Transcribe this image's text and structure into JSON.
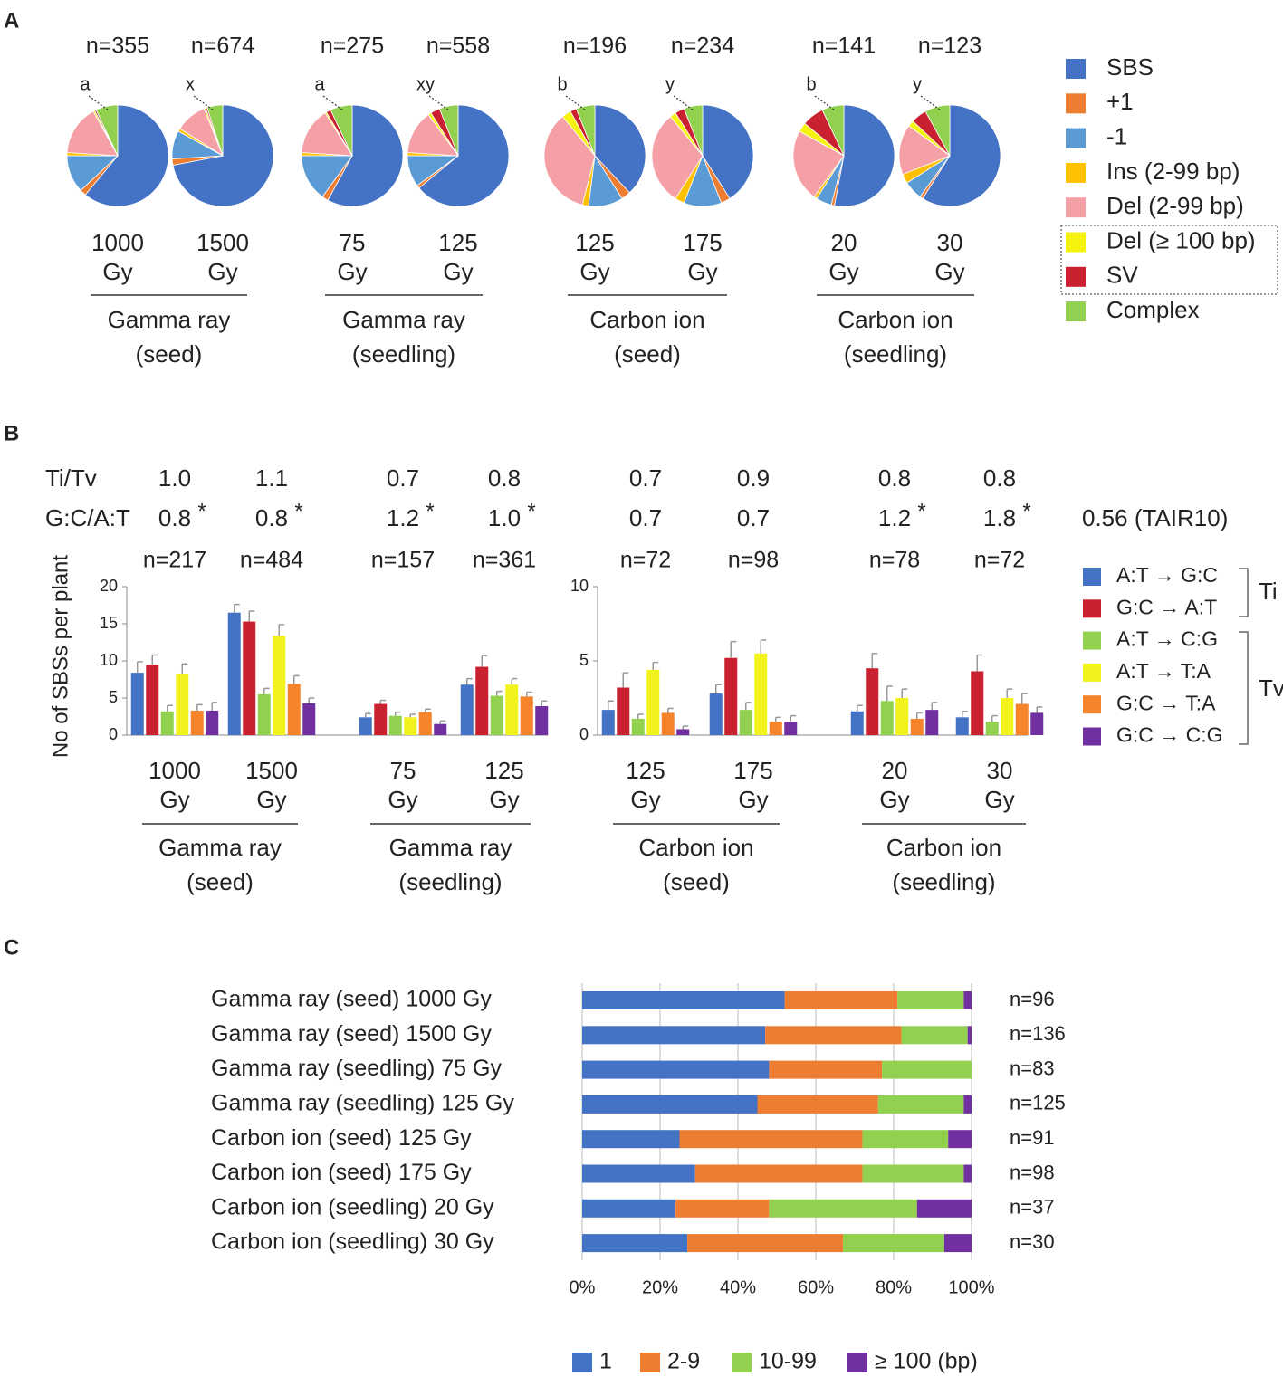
{
  "panels": [
    "A",
    "B",
    "C"
  ],
  "chart_data": [
    {
      "type": "pie",
      "categories": [
        "SBS",
        "+1",
        "-1",
        "Ins (2-99 bp)",
        "Del (2-99 bp)",
        "Del (≥ 100 bp)",
        "SV",
        "Complex"
      ],
      "colors": [
        "#4472c4",
        "#ed7d31",
        "#5b9bd5",
        "#ffc000",
        "#f4a0a6",
        "#f5f20f",
        "#c9212f",
        "#92d050"
      ],
      "pies": [
        {
          "n": "n=355",
          "annotation": "a",
          "label": "1000 Gy",
          "values": [
            61,
            2,
            12,
            1,
            16,
            0.5,
            0.5,
            7
          ]
        },
        {
          "n": "n=674",
          "annotation": "x",
          "label": "1500 Gy",
          "values": [
            72,
            2,
            9,
            1,
            10,
            0.5,
            0.5,
            5
          ]
        },
        {
          "n": "n=275",
          "annotation": "a",
          "label": "75 Gy",
          "values": [
            58,
            2,
            15,
            1,
            15,
            0.5,
            1.5,
            7
          ]
        },
        {
          "n": "n=558",
          "annotation": "xy",
          "label": "125 Gy",
          "values": [
            64,
            1,
            10,
            1,
            14,
            1,
            3,
            6
          ]
        },
        {
          "n": "n=196",
          "annotation": "b",
          "label": "125 Gy",
          "values": [
            38,
            3,
            11,
            2,
            35,
            3,
            2,
            6
          ]
        },
        {
          "n": "n=234",
          "annotation": "y",
          "label": "175 Gy",
          "values": [
            41,
            3,
            12,
            3,
            30,
            2,
            3,
            6
          ]
        },
        {
          "n": "n=141",
          "annotation": "b",
          "label": "20 Gy",
          "values": [
            53,
            1,
            5,
            1,
            23,
            3,
            7,
            7
          ]
        },
        {
          "n": "n=123",
          "annotation": "y",
          "label": "30 Gy",
          "values": [
            59,
            1,
            6,
            3,
            16,
            2,
            5,
            8
          ]
        }
      ],
      "groups": [
        "Gamma ray (seed)",
        "Gamma ray (seedling)",
        "Carbon ion (seed)",
        "Carbon ion (seedling)"
      ]
    },
    {
      "type": "bar",
      "ylabel": "No of SBSs per plant",
      "row_labels": [
        "Ti/Tv",
        "G:C/A:T"
      ],
      "reference": "0.56 (TAIR10)",
      "legend_groups": [
        "Ti",
        "Tv"
      ],
      "categories": [
        "1000 Gy",
        "1500 Gy",
        "75 Gy",
        "125 Gy"
      ],
      "groups": [
        "Gamma ray (seed)",
        "Gamma ray (seedling)"
      ],
      "n": [
        "n=217",
        "n=484",
        "n=157",
        "n=361"
      ],
      "ti_tv": [
        "1.0",
        "1.1",
        "0.7",
        "0.8"
      ],
      "gc_at": [
        "0.8",
        "0.8",
        "1.2",
        "1.0"
      ],
      "gc_at_marks": [
        "*",
        "*",
        "*",
        "*"
      ],
      "ylim": [
        0,
        20
      ],
      "yticks": [
        0,
        5,
        10,
        15,
        20
      ],
      "series": [
        {
          "name": "A:T → G:C",
          "color": "#4472c4",
          "values": [
            8.4,
            16.5,
            2.4,
            6.8
          ],
          "errors": [
            1.5,
            1.1,
            0.5,
            0.8
          ]
        },
        {
          "name": "G:C → A:T",
          "color": "#c9212f",
          "values": [
            9.5,
            15.3,
            4.2,
            9.2
          ],
          "errors": [
            1.3,
            1.4,
            0.5,
            1.5
          ]
        },
        {
          "name": "A:T → C:G",
          "color": "#92d050",
          "values": [
            3.2,
            5.5,
            2.6,
            5.3
          ],
          "errors": [
            0.8,
            0.8,
            0.5,
            0.6
          ]
        },
        {
          "name": "A:T → T:A",
          "color": "#f2f21c",
          "values": [
            8.3,
            13.4,
            2.4,
            6.8
          ],
          "errors": [
            1.3,
            1.5,
            0.4,
            0.8
          ]
        },
        {
          "name": "G:C → T:A",
          "color": "#f5842b",
          "values": [
            3.3,
            6.9,
            3.1,
            5.2
          ],
          "errors": [
            0.8,
            1.1,
            0.4,
            0.6
          ]
        },
        {
          "name": "G:C → C:G",
          "color": "#7030a0",
          "values": [
            3.3,
            4.3,
            1.5,
            3.9
          ],
          "errors": [
            1.1,
            0.7,
            0.4,
            0.7
          ]
        }
      ]
    },
    {
      "type": "bar",
      "categories": [
        "125 Gy",
        "175 Gy",
        "20 Gy",
        "30 Gy"
      ],
      "groups": [
        "Carbon ion (seed)",
        "Carbon ion (seedling)"
      ],
      "n": [
        "n=72",
        "n=98",
        "n=78",
        "n=72"
      ],
      "ti_tv": [
        "0.7",
        "0.9",
        "0.8",
        "0.8"
      ],
      "gc_at": [
        "0.7",
        "0.7",
        "1.2",
        "1.8"
      ],
      "gc_at_marks": [
        null,
        null,
        "*",
        "*"
      ],
      "ylim": [
        0,
        10
      ],
      "yticks": [
        0,
        5,
        10
      ],
      "series": [
        {
          "color": "#4472c4",
          "values": [
            1.7,
            2.8,
            1.6,
            1.2
          ],
          "errors": [
            0.6,
            0.6,
            0.4,
            0.4
          ]
        },
        {
          "color": "#c9212f",
          "values": [
            3.2,
            5.2,
            4.5,
            4.3
          ],
          "errors": [
            1.0,
            1.1,
            1.0,
            1.1
          ]
        },
        {
          "color": "#92d050",
          "values": [
            1.1,
            1.7,
            2.3,
            0.9
          ],
          "errors": [
            0.3,
            0.5,
            1.0,
            0.4
          ]
        },
        {
          "color": "#f2f21c",
          "values": [
            4.4,
            5.5,
            2.5,
            2.5
          ],
          "errors": [
            0.5,
            0.9,
            0.6,
            0.6
          ]
        },
        {
          "color": "#f5842b",
          "values": [
            1.5,
            0.9,
            1.1,
            2.1
          ],
          "errors": [
            0.3,
            0.3,
            0.4,
            0.7
          ]
        },
        {
          "color": "#7030a0",
          "values": [
            0.4,
            0.9,
            1.7,
            1.5
          ],
          "errors": [
            0.2,
            0.4,
            0.5,
            0.4
          ]
        }
      ]
    },
    {
      "type": "stacked_barh",
      "categories": [
        "Gamma ray (seed) 1000 Gy",
        "Gamma ray (seed) 1500 Gy",
        "Gamma ray (seedling) 75 Gy",
        "Gamma ray (seedling) 125 Gy",
        "Carbon ion (seed) 125 Gy",
        "Carbon ion (seed) 175 Gy",
        "Carbon ion (seedling) 20 Gy",
        "Carbon ion (seedling) 30 Gy"
      ],
      "n": [
        "n=96",
        "n=136",
        "n=83",
        "n=125",
        "n=91",
        "n=98",
        "n=37",
        "n=30"
      ],
      "xlim": [
        0,
        100
      ],
      "xticks": [
        {
          "value": 0,
          "label": "0%"
        },
        {
          "value": 20,
          "label": "20%"
        },
        {
          "value": 40,
          "label": "40%"
        },
        {
          "value": 60,
          "label": "60%"
        },
        {
          "value": 80,
          "label": "80%"
        },
        {
          "value": 100,
          "label": "100%"
        }
      ],
      "grid": true,
      "series": [
        {
          "name": "1",
          "color": "#4472c4",
          "values": [
            52,
            47,
            48,
            45,
            25,
            29,
            24,
            27
          ]
        },
        {
          "name": "2-9",
          "color": "#ed7d31",
          "values": [
            29,
            35,
            29,
            31,
            47,
            43,
            24,
            40
          ]
        },
        {
          "name": "10-99",
          "color": "#92d050",
          "values": [
            17,
            17,
            23,
            22,
            22,
            26,
            38,
            26
          ]
        },
        {
          "name": "≥ 100 (bp)",
          "color": "#7030a0",
          "values": [
            2,
            1,
            0,
            2,
            6,
            2,
            14,
            7
          ]
        }
      ]
    }
  ]
}
